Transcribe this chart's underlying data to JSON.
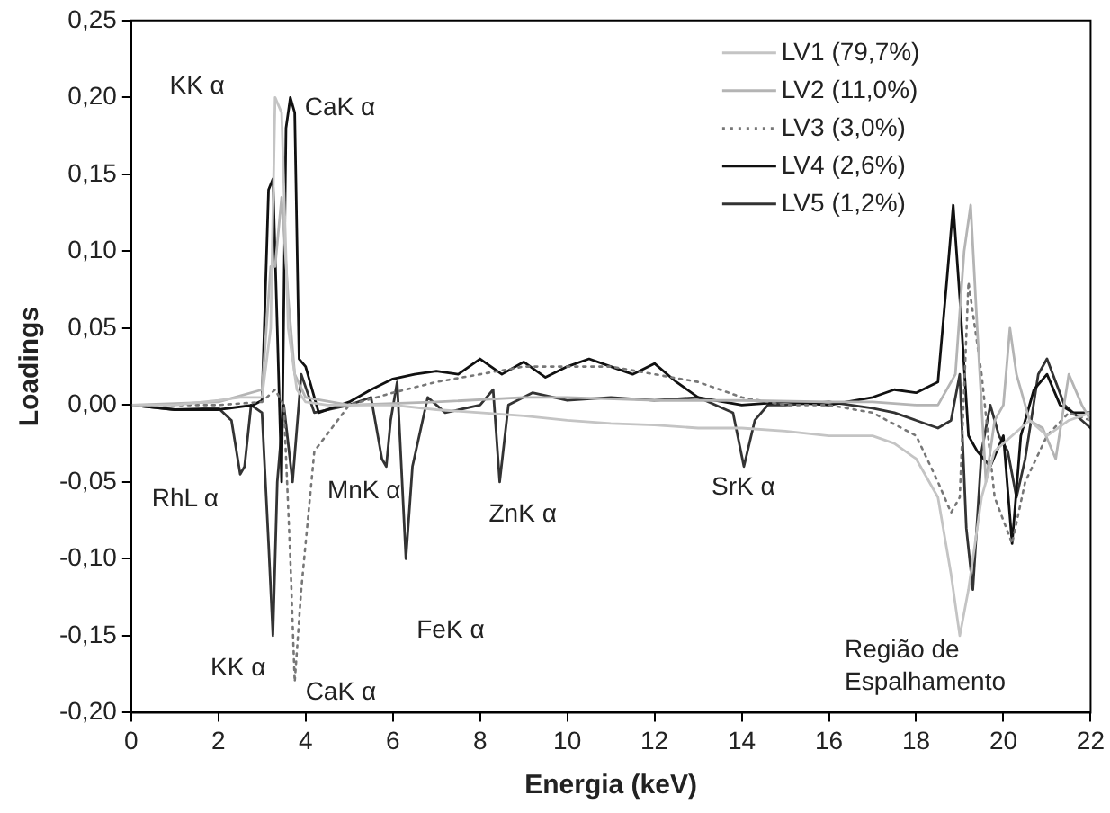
{
  "chart_data": {
    "type": "line",
    "xlabel": "Energia (keV)",
    "ylabel": "Loadings",
    "xlim": [
      0,
      22
    ],
    "xticks": [
      0,
      2,
      4,
      6,
      8,
      10,
      12,
      14,
      16,
      18,
      20,
      22
    ],
    "ylim": [
      -0.2,
      0.25
    ],
    "yticks": [
      {
        "value": -0.2,
        "label": "-0,20"
      },
      {
        "value": -0.15,
        "label": "-0,15"
      },
      {
        "value": -0.1,
        "label": "-0,10"
      },
      {
        "value": -0.05,
        "label": "-0,05"
      },
      {
        "value": 0,
        "label": "0,00"
      },
      {
        "value": 0.05,
        "label": "0,05"
      },
      {
        "value": 0.1,
        "label": "0,10"
      },
      {
        "value": 0.15,
        "label": "0,15"
      },
      {
        "value": 0.2,
        "label": "0,20"
      },
      {
        "value": 0.25,
        "label": "0,25"
      }
    ],
    "legend": "top right",
    "marker": "none",
    "grid": false,
    "series": [
      {
        "name": "LV1 (79,7%)",
        "color": "#c4c4c4",
        "line_style": "solid",
        "x": [
          0,
          1,
          2,
          2.5,
          3.0,
          3.2,
          3.3,
          3.45,
          3.6,
          3.8,
          4.0,
          4.5,
          5,
          6,
          7,
          8,
          9,
          10,
          11,
          12,
          13,
          14,
          15,
          16,
          17,
          17.5,
          18,
          18.5,
          18.8,
          19.0,
          19.2,
          19.5,
          19.8,
          20.2,
          20.6,
          21,
          21.5,
          22
        ],
        "values": [
          0,
          0,
          0.003,
          0.005,
          0.005,
          0.05,
          0.2,
          0.19,
          0.05,
          0.01,
          0.002,
          0,
          0,
          0,
          -0.003,
          -0.005,
          -0.007,
          -0.01,
          -0.012,
          -0.013,
          -0.015,
          -0.015,
          -0.017,
          -0.02,
          -0.02,
          -0.025,
          -0.035,
          -0.06,
          -0.11,
          -0.15,
          -0.12,
          -0.06,
          -0.03,
          -0.02,
          -0.01,
          -0.02,
          -0.01,
          -0.005
        ]
      },
      {
        "name": "LV2 (11,0%)",
        "color": "#b4b4b4",
        "line_style": "solid",
        "x": [
          0,
          2,
          3.0,
          3.2,
          3.3,
          3.45,
          3.6,
          3.75,
          4.0,
          5,
          7,
          9,
          10,
          12,
          14,
          16,
          17,
          18,
          18.5,
          18.9,
          19.1,
          19.25,
          19.4,
          19.6,
          19.8,
          20.0,
          20.15,
          20.3,
          20.6,
          20.9,
          21.2,
          21.5,
          21.8,
          22
        ],
        "values": [
          0,
          0.002,
          0.01,
          0.09,
          0.09,
          0.135,
          0.07,
          0.02,
          0.005,
          0,
          0.002,
          0.005,
          0.005,
          0.003,
          0.003,
          0.002,
          0.002,
          0,
          0,
          0.02,
          0.1,
          0.13,
          0.05,
          -0.05,
          -0.01,
          0,
          0.05,
          0.02,
          -0.01,
          -0.015,
          -0.035,
          0.02,
          0,
          -0.01
        ]
      },
      {
        "name": "LV3 (3,0%)",
        "color": "#777777",
        "line_style": "dotted",
        "x": [
          0,
          2,
          3.0,
          3.3,
          3.5,
          3.65,
          3.75,
          3.9,
          4.2,
          5,
          6,
          7,
          8,
          9,
          10,
          11,
          12,
          13,
          14,
          15,
          16,
          17,
          18,
          18.5,
          18.8,
          19.0,
          19.2,
          19.5,
          19.8,
          20.2,
          20.5,
          21,
          21.5,
          22
        ],
        "values": [
          0,
          0,
          0.002,
          0.01,
          0,
          -0.1,
          -0.18,
          -0.12,
          -0.03,
          0,
          0.008,
          0.015,
          0.02,
          0.025,
          0.025,
          0.025,
          0.02,
          0.015,
          0.005,
          0,
          0,
          -0.005,
          -0.02,
          -0.05,
          -0.07,
          -0.06,
          0.08,
          0.02,
          -0.06,
          -0.09,
          -0.05,
          -0.02,
          -0.005,
          -0.01
        ]
      },
      {
        "name": "LV4 (2,6%)",
        "color": "#111111",
        "line_style": "solid",
        "x": [
          0,
          1,
          2,
          2.8,
          3.0,
          3.15,
          3.25,
          3.35,
          3.45,
          3.55,
          3.65,
          3.75,
          3.85,
          4.0,
          4.3,
          5,
          5.5,
          6,
          6.5,
          7,
          7.5,
          8,
          8.5,
          9,
          9.5,
          10,
          10.5,
          11,
          11.5,
          12,
          12.5,
          13,
          14,
          15,
          16,
          17,
          17.5,
          18,
          18.5,
          18.7,
          18.85,
          19.0,
          19.2,
          19.4,
          19.7,
          20.0,
          20.2,
          20.4,
          20.7,
          21.0,
          21.3,
          21.6,
          22
        ],
        "values": [
          0,
          -0.003,
          -0.003,
          0,
          0.003,
          0.14,
          0.147,
          0.05,
          -0.05,
          0.18,
          0.2,
          0.19,
          0.03,
          0.025,
          -0.005,
          0.002,
          0.01,
          0.017,
          0.02,
          0.022,
          0.02,
          0.03,
          0.02,
          0.028,
          0.018,
          0.025,
          0.03,
          0.025,
          0.02,
          0.027,
          0.015,
          0.005,
          0,
          0.002,
          0,
          0.005,
          0.01,
          0.008,
          0.015,
          0.08,
          0.13,
          0.07,
          -0.02,
          -0.03,
          -0.04,
          -0.02,
          -0.09,
          -0.02,
          0.01,
          0.02,
          0,
          -0.005,
          -0.005
        ]
      },
      {
        "name": "LV5 (1,2%)",
        "color": "#333333",
        "line_style": "solid",
        "x": [
          0,
          1,
          2,
          2.3,
          2.5,
          2.6,
          2.75,
          3.0,
          3.15,
          3.25,
          3.35,
          3.5,
          3.7,
          3.9,
          4.2,
          5,
          5.5,
          5.75,
          5.85,
          5.95,
          6.1,
          6.3,
          6.45,
          6.8,
          7.2,
          8,
          8.3,
          8.45,
          8.65,
          9.2,
          10,
          11,
          12,
          13,
          13.8,
          14.05,
          14.3,
          14.6,
          15,
          16,
          17,
          17.5,
          18,
          18.5,
          18.8,
          19.0,
          19.15,
          19.3,
          19.5,
          19.7,
          19.9,
          20.1,
          20.3,
          20.5,
          20.8,
          21.0,
          21.4,
          21.8,
          22
        ],
        "values": [
          0,
          -0.003,
          -0.002,
          -0.01,
          -0.045,
          -0.04,
          0,
          -0.005,
          -0.09,
          -0.15,
          -0.05,
          0,
          -0.05,
          0.02,
          -0.005,
          0,
          0.005,
          -0.035,
          -0.04,
          -0.01,
          0.015,
          -0.1,
          -0.04,
          0.005,
          -0.005,
          0,
          0.01,
          -0.05,
          0,
          0.008,
          0.003,
          0.005,
          0.003,
          0.005,
          -0.005,
          -0.04,
          -0.01,
          0,
          0,
          0.002,
          -0.002,
          -0.005,
          -0.01,
          -0.015,
          -0.01,
          0.02,
          -0.08,
          -0.12,
          -0.03,
          0,
          -0.02,
          -0.03,
          -0.06,
          -0.035,
          0.02,
          0.03,
          0,
          -0.01,
          -0.015
        ]
      }
    ],
    "annotations": [
      {
        "text": "KK α",
        "x": 3.3,
        "y": 0.2
      },
      {
        "text": "CaK α",
        "x": 3.65,
        "y": 0.2
      },
      {
        "text": "RhL α",
        "x": 2.5,
        "y": -0.045
      },
      {
        "text": "KK α",
        "x": 3.25,
        "y": -0.15
      },
      {
        "text": "CaK α",
        "x": 3.75,
        "y": -0.18
      },
      {
        "text": "MnK α",
        "x": 5.85,
        "y": -0.04
      },
      {
        "text": "FeK α",
        "x": 6.3,
        "y": -0.1
      },
      {
        "text": "ZnK α",
        "x": 8.45,
        "y": -0.05
      },
      {
        "text": "SrK α",
        "x": 14.05,
        "y": -0.04
      },
      {
        "text": "Região de Espalhamento",
        "x": 19.0,
        "y": -0.15
      }
    ]
  }
}
